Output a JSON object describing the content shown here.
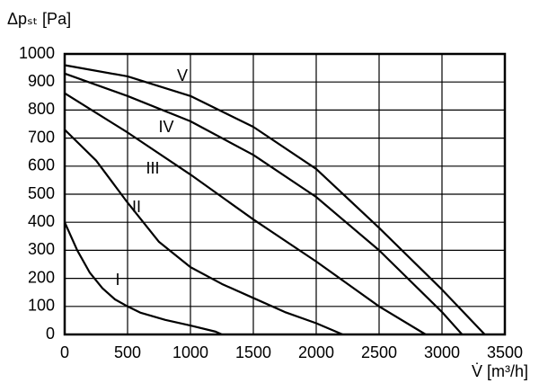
{
  "chart_data": {
    "type": "line",
    "y_label": "Δpₛₜ [Pa]",
    "x_label": "V̇ [m³/h]",
    "xlim": [
      0,
      3500
    ],
    "ylim": [
      0,
      1000
    ],
    "xticks": [
      0,
      500,
      1000,
      1500,
      2000,
      2500,
      3000,
      3500
    ],
    "yticks": [
      0,
      100,
      200,
      300,
      400,
      500,
      600,
      700,
      800,
      900,
      1000
    ],
    "grid": true,
    "series": [
      {
        "name": "I",
        "color": "#000000",
        "x": [
          0,
          100,
          200,
          300,
          400,
          500,
          600,
          800,
          1000,
          1200,
          1250
        ],
        "values": [
          400,
          300,
          220,
          165,
          125,
          100,
          78,
          52,
          32,
          10,
          0
        ]
      },
      {
        "name": "II",
        "color": "#000000",
        "x": [
          0,
          250,
          500,
          750,
          1000,
          1250,
          1500,
          1750,
          2000,
          2210
        ],
        "values": [
          730,
          620,
          470,
          330,
          240,
          180,
          130,
          80,
          40,
          0
        ]
      },
      {
        "name": "III",
        "color": "#000000",
        "x": [
          0,
          500,
          1000,
          1500,
          2000,
          2500,
          2870
        ],
        "values": [
          860,
          720,
          570,
          410,
          260,
          100,
          0
        ]
      },
      {
        "name": "IV",
        "color": "#000000",
        "x": [
          0,
          500,
          1000,
          1500,
          2000,
          2500,
          3000,
          3160
        ],
        "values": [
          930,
          850,
          760,
          640,
          490,
          300,
          80,
          0
        ]
      },
      {
        "name": "V",
        "color": "#000000",
        "x": [
          0,
          500,
          1000,
          1500,
          2000,
          2500,
          3000,
          3340
        ],
        "values": [
          960,
          920,
          850,
          740,
          590,
          380,
          160,
          0
        ]
      }
    ]
  }
}
